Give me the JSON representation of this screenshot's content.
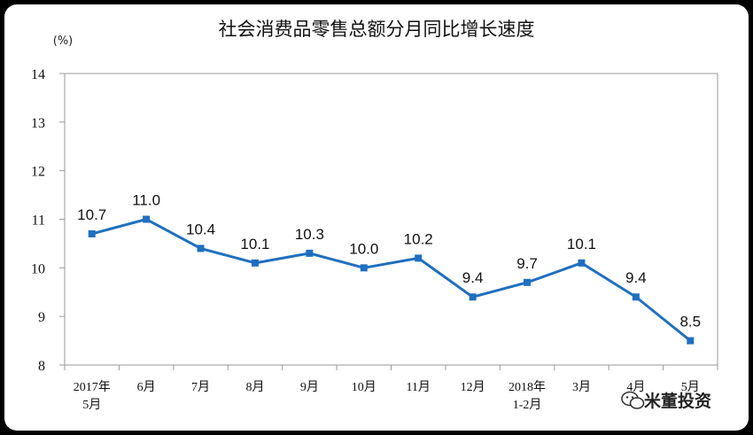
{
  "chart_data": {
    "type": "line",
    "title": "社会消费品零售总额分月同比增长速度",
    "ylabel": "(%)",
    "xlabel": "",
    "ylim": [
      8,
      14
    ],
    "yticks": [
      "8",
      "9",
      "10",
      "11",
      "12",
      "13",
      "14"
    ],
    "categories": [
      [
        "2017年",
        "5月"
      ],
      [
        "6月"
      ],
      [
        "7月"
      ],
      [
        "8月"
      ],
      [
        "9月"
      ],
      [
        "10月"
      ],
      [
        "11月"
      ],
      [
        "12月"
      ],
      [
        "2018年",
        "1-2月"
      ],
      [
        "3月"
      ],
      [
        "4月"
      ],
      [
        "5月"
      ]
    ],
    "values": [
      10.7,
      11.0,
      10.4,
      10.1,
      10.3,
      10.0,
      10.2,
      9.4,
      9.7,
      10.1,
      9.4,
      8.5
    ],
    "data_labels": [
      "10.7",
      "11.0",
      "10.4",
      "10.1",
      "10.3",
      "10.0",
      "10.2",
      "9.4",
      "9.7",
      "10.1",
      "9.4",
      "8.5"
    ],
    "line_color": "#1f6fc0",
    "grid": false
  },
  "watermark": {
    "icon": "wechat-icon",
    "text": "米董投资"
  }
}
